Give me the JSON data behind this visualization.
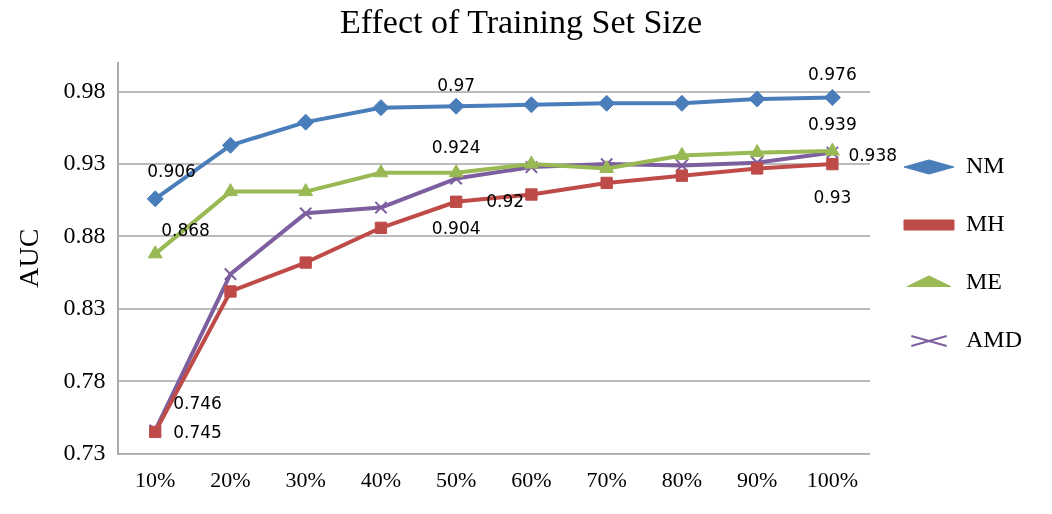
{
  "chart_data": {
    "type": "line",
    "title": "Effect of Training Set Size",
    "ylabel": "AUC",
    "categories": [
      "10%",
      "20%",
      "30%",
      "40%",
      "50%",
      "60%",
      "70%",
      "80%",
      "90%",
      "100%"
    ],
    "ylim": [
      0.73,
      1.0
    ],
    "yticks": [
      0.73,
      0.78,
      0.83,
      0.88,
      0.93,
      0.98
    ],
    "grid": "y",
    "legend": "right",
    "series": [
      {
        "name": "NM",
        "color": "#4a7ebb",
        "marker": "diamond",
        "values": [
          0.906,
          0.943,
          0.959,
          0.969,
          0.97,
          0.971,
          0.972,
          0.972,
          0.975,
          0.976
        ],
        "value_labels": [
          "0.906",
          null,
          null,
          null,
          "0.97",
          null,
          null,
          null,
          null,
          "0.976"
        ]
      },
      {
        "name": "MH",
        "color": "#be4b48",
        "marker": "square",
        "values": [
          0.745,
          0.842,
          0.862,
          0.886,
          0.904,
          0.909,
          0.917,
          0.922,
          0.927,
          0.93
        ],
        "value_labels": [
          "0.745",
          null,
          null,
          null,
          "0.904",
          null,
          null,
          null,
          null,
          "0.93"
        ]
      },
      {
        "name": "ME",
        "color": "#98b954",
        "marker": "triangle",
        "values": [
          0.868,
          0.911,
          0.911,
          0.924,
          0.924,
          0.93,
          0.927,
          0.936,
          0.938,
          0.939
        ],
        "value_labels": [
          "0.868",
          null,
          null,
          null,
          "0.924",
          null,
          null,
          null,
          null,
          "0.939"
        ]
      },
      {
        "name": "AMD",
        "color": "#7d5fa0",
        "marker": "cross",
        "values": [
          0.746,
          0.854,
          0.896,
          0.9,
          0.92,
          0.928,
          0.93,
          0.929,
          0.931,
          0.938
        ],
        "value_labels": [
          "0.746",
          null,
          null,
          null,
          "0.92",
          null,
          null,
          null,
          null,
          "0.938"
        ]
      }
    ]
  }
}
